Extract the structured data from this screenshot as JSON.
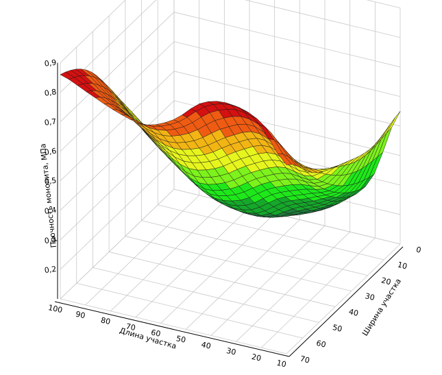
{
  "chart_data": {
    "type": "surface",
    "title": "",
    "xlabel": "Длина участка",
    "ylabel": "Ширина участка",
    "zlabel": "Прочность монолита, МПа",
    "x_ticks": [
      "100",
      "90",
      "80",
      "70",
      "60",
      "50",
      "40",
      "30",
      "20",
      "10"
    ],
    "y_ticks": [
      "0",
      "10",
      "20",
      "30",
      "40",
      "50",
      "60",
      "70"
    ],
    "z_ticks": [
      "0,2",
      "0,3",
      "0,4",
      "0,5",
      "0,6",
      "0,7",
      "0,8",
      "0,9"
    ],
    "xlim": [
      10,
      100
    ],
    "ylim": [
      0,
      70
    ],
    "zlim": [
      0.1,
      0.9
    ],
    "grid": true,
    "colormap": [
      "#1d7a3a",
      "#15a82a",
      "#1ee81a",
      "#7df21c",
      "#e6f51d",
      "#f2b514",
      "#ef5b12",
      "#d41010"
    ],
    "z": [
      [
        0.86,
        0.82,
        0.78,
        0.76,
        0.8,
        0.88,
        0.9,
        0.86,
        0.74
      ],
      [
        0.78,
        0.7,
        0.62,
        0.58,
        0.6,
        0.66,
        0.7,
        0.66,
        0.62
      ],
      [
        0.6,
        0.5,
        0.42,
        0.36,
        0.38,
        0.44,
        0.48,
        0.48,
        0.56
      ],
      [
        0.4,
        0.32,
        0.24,
        0.2,
        0.2,
        0.26,
        0.3,
        0.36,
        0.52
      ],
      [
        0.22,
        0.16,
        0.12,
        0.1,
        0.11,
        0.14,
        0.2,
        0.3,
        0.55
      ]
    ]
  }
}
